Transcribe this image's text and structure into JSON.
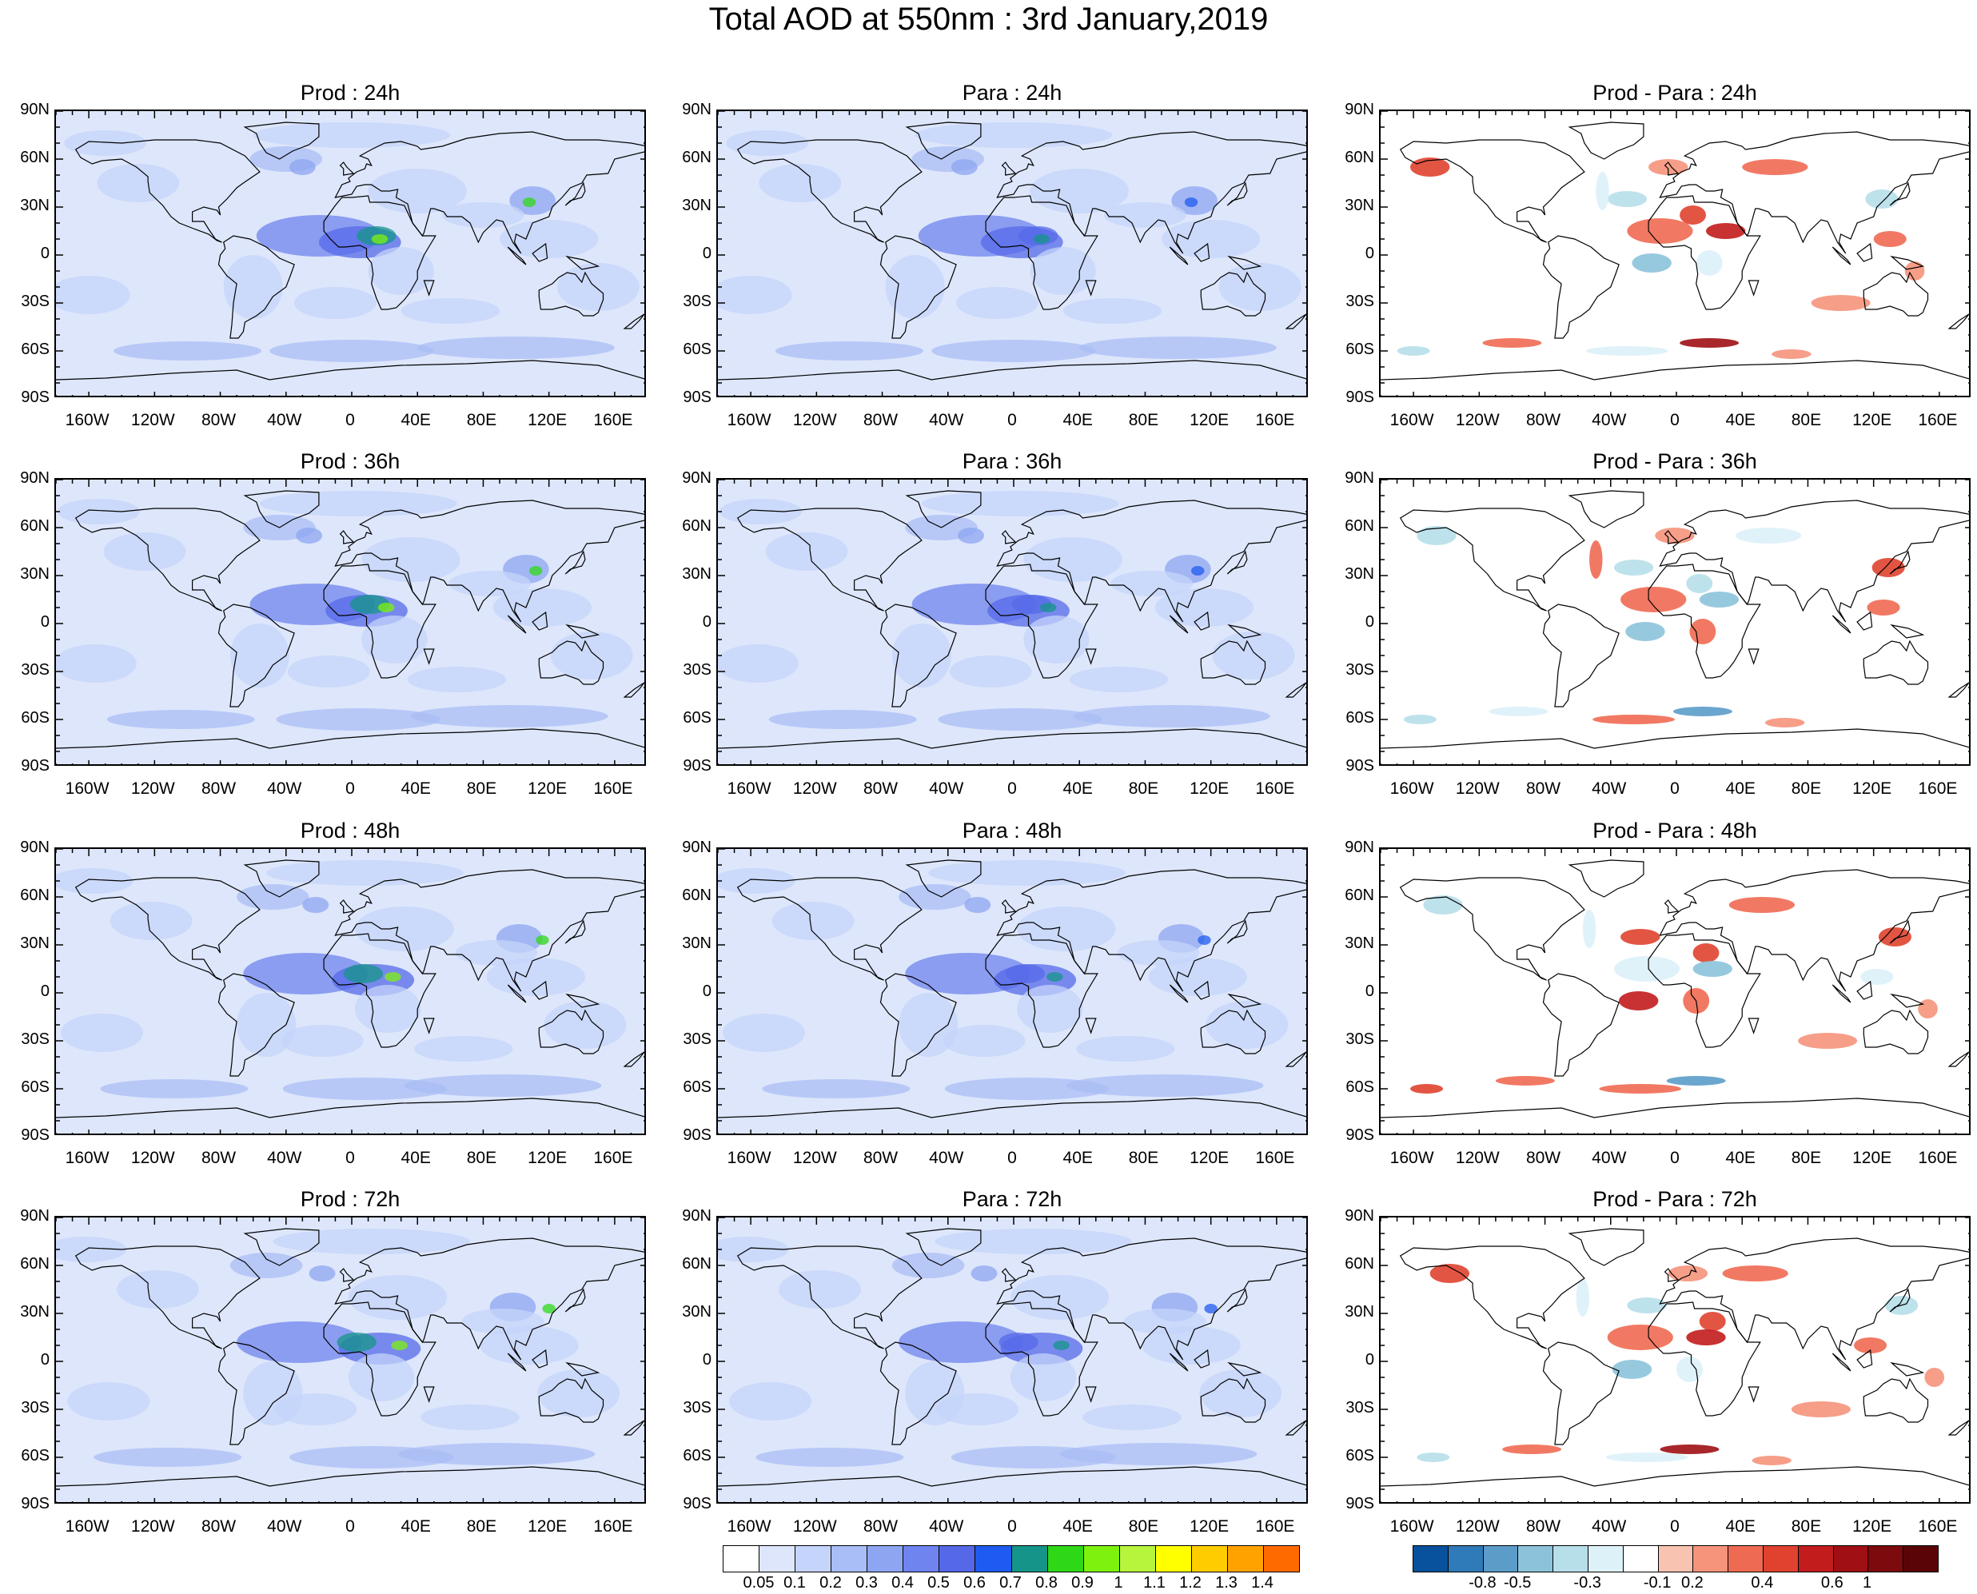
{
  "title": "Total AOD at 550nm : 3rd January,2019",
  "lat_ticks": [
    "90N",
    "60N",
    "30N",
    "0",
    "30S",
    "60S",
    "90S"
  ],
  "lon_ticks": [
    "160W",
    "120W",
    "80W",
    "40W",
    "0",
    "40E",
    "80E",
    "120E",
    "160E"
  ],
  "panels": [
    {
      "title": "Prod : 24h",
      "kind": "aod",
      "level": 1
    },
    {
      "title": "Para : 24h",
      "kind": "aod",
      "level": 1
    },
    {
      "title": "Prod - Para : 24h",
      "kind": "diff",
      "level": 1
    },
    {
      "title": "Prod : 36h",
      "kind": "aod",
      "level": 2
    },
    {
      "title": "Para : 36h",
      "kind": "aod",
      "level": 2
    },
    {
      "title": "Prod - Para : 36h",
      "kind": "diff",
      "level": 2
    },
    {
      "title": "Prod : 48h",
      "kind": "aod",
      "level": 3
    },
    {
      "title": "Para : 48h",
      "kind": "aod",
      "level": 3
    },
    {
      "title": "Prod - Para : 48h",
      "kind": "diff",
      "level": 3
    },
    {
      "title": "Prod : 72h",
      "kind": "aod",
      "level": 4
    },
    {
      "title": "Para : 72h",
      "kind": "aod",
      "level": 4
    },
    {
      "title": "Prod - Para : 72h",
      "kind": "diff",
      "level": 4
    }
  ],
  "aod_colorbar": {
    "labels": [
      "0.05",
      "0.1",
      "0.2",
      "0.3",
      "0.4",
      "0.5",
      "0.6",
      "0.7",
      "0.8",
      "0.9",
      "1",
      "1.1",
      "1.2",
      "1.3",
      "1.4"
    ],
    "colors": [
      "#ffffff",
      "#dde6fb",
      "#c4d4fa",
      "#a9bef6",
      "#8ea6f2",
      "#6f84ee",
      "#5569e8",
      "#1f5bf0",
      "#15958a",
      "#2fd817",
      "#7ef20e",
      "#b7f53d",
      "#ffff00",
      "#ffcc00",
      "#ffa200",
      "#ff6a00"
    ]
  },
  "diff_colorbar": {
    "labels": [
      "-0.8",
      "-0.5",
      "-0.3",
      "-0.1",
      "0.2",
      "0.4",
      "0.6",
      "1"
    ],
    "colors": [
      "#08519c",
      "#2f7ab8",
      "#5b9cc9",
      "#8cc3da",
      "#b7dfea",
      "#ddf1f8",
      "#ffffff",
      "#f9c3b2",
      "#f5937b",
      "#ef6a52",
      "#e0422f",
      "#c21c1c",
      "#9f0f14",
      "#7d0a0d",
      "#5a0408"
    ]
  },
  "colors": {
    "outline": "#000000",
    "frame": "#000000"
  }
}
